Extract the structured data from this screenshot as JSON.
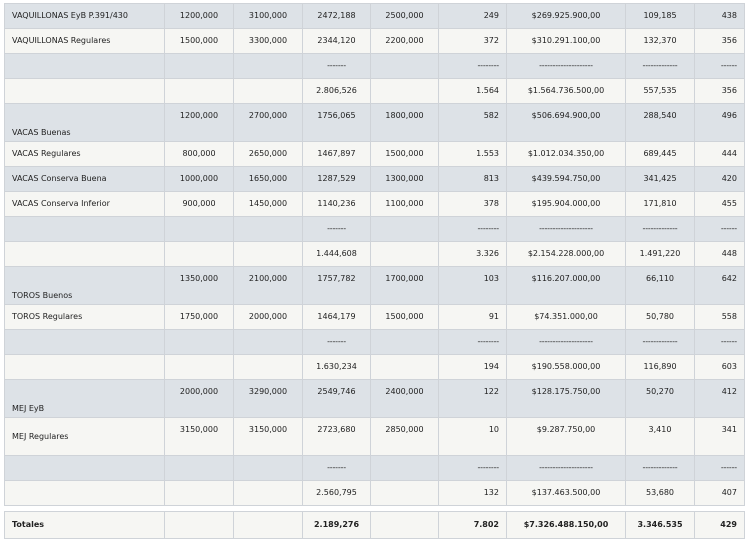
{
  "rows": [
    {
      "style": "a",
      "name": "VAQUILLONAS EyB P.391/430",
      "c1": "1200,000",
      "c2": "3100,000",
      "c3": "2472,188",
      "c4": "2500,000",
      "c5": "249",
      "c6": "$269.925.900,00",
      "c7": "109,185",
      "c8": "438"
    },
    {
      "style": "b",
      "name": "VAQUILLONAS Regulares",
      "c1": "1500,000",
      "c2": "3300,000",
      "c3": "2344,120",
      "c4": "2200,000",
      "c5": "372",
      "c6": "$310.291.100,00",
      "c7": "132,370",
      "c8": "356"
    },
    {
      "style": "a",
      "name": "",
      "c1": "",
      "c2": "",
      "c3": "-------",
      "c4": "",
      "c5": "--------",
      "c6": "--------------------",
      "c7": "-------------",
      "c8": "------"
    },
    {
      "style": "b",
      "name": "",
      "c1": "",
      "c2": "",
      "c3": "2.806,526",
      "c4": "",
      "c5": "1.564",
      "c6": "$1.564.736.500,00",
      "c7": "557,535",
      "c8": "356"
    },
    {
      "style": "a",
      "name": "VACAS Buenas",
      "c1": "1200,000",
      "c2": "2700,000",
      "c3": "1756,065",
      "c4": "1800,000",
      "c5": "582",
      "c6": "$506.694.900,00",
      "c7": "288,540",
      "c8": "496"
    },
    {
      "style": "b",
      "name": "VACAS Regulares",
      "c1": "800,000",
      "c2": "2650,000",
      "c3": "1467,897",
      "c4": "1500,000",
      "c5": "1.553",
      "c6": "$1.012.034.350,00",
      "c7": "689,445",
      "c8": "444"
    },
    {
      "style": "a",
      "name": "VACAS Conserva Buena",
      "c1": "1000,000",
      "c2": "1650,000",
      "c3": "1287,529",
      "c4": "1300,000",
      "c5": "813",
      "c6": "$439.594.750,00",
      "c7": "341,425",
      "c8": "420"
    },
    {
      "style": "b",
      "name": "VACAS Conserva Inferior",
      "c1": "900,000",
      "c2": "1450,000",
      "c3": "1140,236",
      "c4": "1100,000",
      "c5": "378",
      "c6": "$195.904.000,00",
      "c7": "171,810",
      "c8": "455"
    },
    {
      "style": "a",
      "name": "",
      "c1": "",
      "c2": "",
      "c3": "-------",
      "c4": "",
      "c5": "--------",
      "c6": "--------------------",
      "c7": "-------------",
      "c8": "------"
    },
    {
      "style": "b",
      "name": "",
      "c1": "",
      "c2": "",
      "c3": "1.444,608",
      "c4": "",
      "c5": "3.326",
      "c6": "$2.154.228.000,00",
      "c7": "1.491,220",
      "c8": "448"
    },
    {
      "style": "a",
      "name": "TOROS Buenos",
      "c1": "1350,000",
      "c2": "2100,000",
      "c3": "1757,782",
      "c4": "1700,000",
      "c5": "103",
      "c6": "$116.207.000,00",
      "c7": "66,110",
      "c8": "642"
    },
    {
      "style": "b",
      "name": "TOROS Regulares",
      "c1": "1750,000",
      "c2": "2000,000",
      "c3": "1464,179",
      "c4": "1500,000",
      "c5": "91",
      "c6": "$74.351.000,00",
      "c7": "50,780",
      "c8": "558"
    },
    {
      "style": "a",
      "name": "",
      "c1": "",
      "c2": "",
      "c3": "-------",
      "c4": "",
      "c5": "--------",
      "c6": "--------------------",
      "c7": "-------------",
      "c8": "------"
    },
    {
      "style": "b",
      "name": "",
      "c1": "",
      "c2": "",
      "c3": "1.630,234",
      "c4": "",
      "c5": "194",
      "c6": "$190.558.000,00",
      "c7": "116,890",
      "c8": "603"
    },
    {
      "style": "a",
      "name": "MEJ EyB",
      "c1": "2000,000",
      "c2": "3290,000",
      "c3": "2549,746",
      "c4": "2400,000",
      "c5": "122",
      "c6": "$128.175.750,00",
      "c7": "50,270",
      "c8": "412"
    },
    {
      "style": "b",
      "name": "MEJ Regulares",
      "c1": "3150,000",
      "c2": "3150,000",
      "c3": "2723,680",
      "c4": "2850,000",
      "c5": "10",
      "c6": "$9.287.750,00",
      "c7": "3,410",
      "c8": "341"
    },
    {
      "style": "a",
      "name": "",
      "c1": "",
      "c2": "",
      "c3": "-------",
      "c4": "",
      "c5": "--------",
      "c6": "--------------------",
      "c7": "-------------",
      "c8": "------"
    },
    {
      "style": "b",
      "name": "",
      "c1": "",
      "c2": "",
      "c3": "2.560,795",
      "c4": "",
      "c5": "132",
      "c6": "$137.463.500,00",
      "c7": "53,680",
      "c8": "407"
    }
  ],
  "totals": {
    "name": "Totales",
    "c1": "",
    "c2": "",
    "c3": "2.189,276",
    "c4": "",
    "c5": "7.802",
    "c6": "$7.326.488.150,00",
    "c7": "3.346.535",
    "c8": "429"
  }
}
